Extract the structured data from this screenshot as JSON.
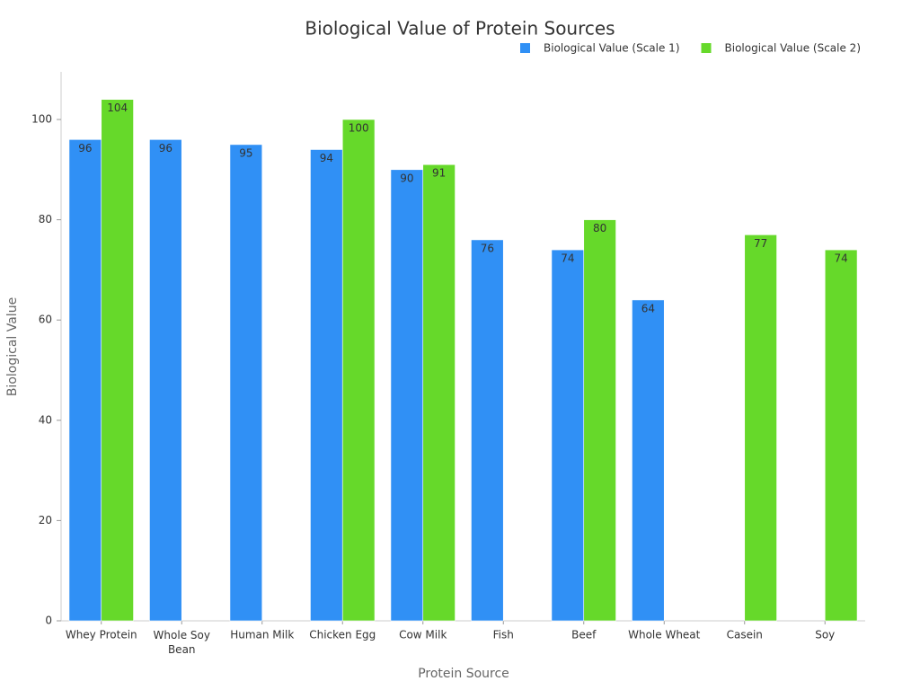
{
  "chart_data": {
    "type": "bar",
    "title": "Biological Value of Protein Sources",
    "x_label": "Protein Source",
    "y_label": "Biological Value",
    "categories": [
      "Whey Protein",
      "Whole Soy Bean",
      "Human Milk",
      "Chicken Egg",
      "Cow Milk",
      "Fish",
      "Beef",
      "Whole Wheat",
      "Casein",
      "Soy"
    ],
    "series": [
      {
        "name": "Biological Value (Scale 1)",
        "color": "#3090f5",
        "values": [
          96,
          96,
          95,
          94,
          90,
          76,
          74,
          64,
          null,
          null
        ]
      },
      {
        "name": "Biological Value (Scale 2)",
        "color": "#66d92a",
        "values": [
          104,
          null,
          null,
          100,
          91,
          null,
          80,
          null,
          77,
          74
        ]
      }
    ],
    "ylim": [
      0,
      110
    ],
    "yticks": [
      0,
      20,
      40,
      60,
      80,
      100
    ],
    "grid": false,
    "legend": "top-right"
  }
}
